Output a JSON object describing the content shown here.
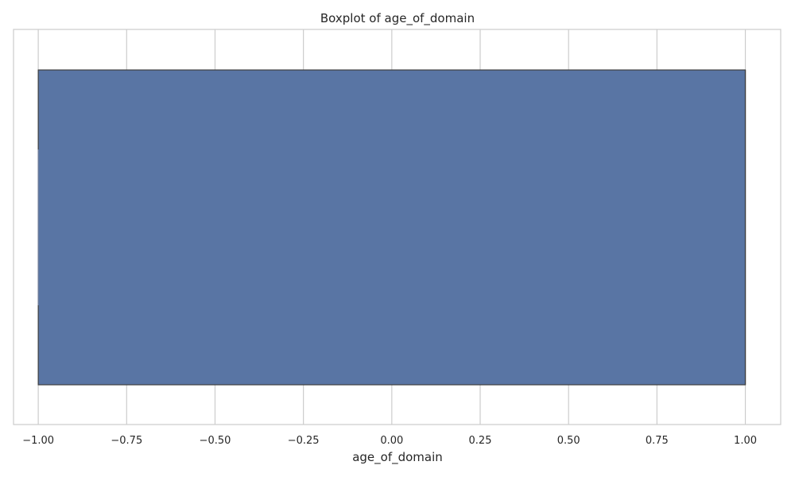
{
  "chart_data": {
    "type": "boxplot",
    "title": "Boxplot of age_of_domain",
    "xlabel": "age_of_domain",
    "ylabel": "",
    "orientation": "horizontal",
    "xlim": [
      -1.07,
      1.1
    ],
    "xticks": [
      -1.0,
      -0.75,
      -0.5,
      -0.25,
      0.0,
      0.25,
      0.5,
      0.75,
      1.0
    ],
    "xtick_labels": [
      "−1.00",
      "−0.75",
      "−0.50",
      "−0.25",
      "0.00",
      "0.25",
      "0.50",
      "0.75",
      "1.00"
    ],
    "grid": true,
    "series": [
      {
        "whisker_low": -1.0,
        "q1": -1.0,
        "median": 1.0,
        "q3": 1.0,
        "whisker_high": 1.0,
        "color": "#5975a4"
      }
    ]
  }
}
